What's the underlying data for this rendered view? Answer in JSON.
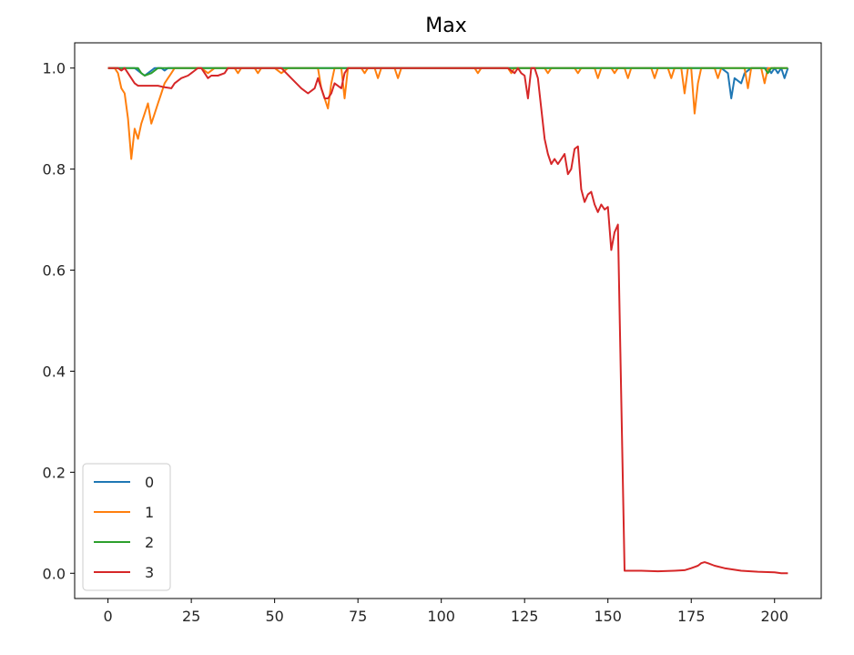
{
  "chart_data": {
    "type": "line",
    "title": "Max",
    "xlabel": "",
    "ylabel": "",
    "xlim": [
      -10,
      214
    ],
    "ylim": [
      -0.05,
      1.05
    ],
    "xticks": [
      0,
      25,
      50,
      75,
      100,
      125,
      150,
      175,
      200
    ],
    "yticks": [
      0.0,
      0.2,
      0.4,
      0.6,
      0.8,
      1.0
    ],
    "ytick_labels": [
      "0.0",
      "0.2",
      "0.4",
      "0.6",
      "0.8",
      "1.0"
    ],
    "grid": false,
    "legend": "lower-left",
    "series": [
      {
        "name": "0",
        "color": "#1f77b4",
        "points": [
          [
            0,
            1.0
          ],
          [
            8,
            1.0
          ],
          [
            10,
            0.99
          ],
          [
            11,
            0.985
          ],
          [
            12,
            0.99
          ],
          [
            14,
            1.0
          ],
          [
            16,
            1.0
          ],
          [
            17,
            0.995
          ],
          [
            18,
            1.0
          ],
          [
            30,
            1.0
          ],
          [
            60,
            1.0
          ],
          [
            100,
            1.0
          ],
          [
            150,
            1.0
          ],
          [
            180,
            1.0
          ],
          [
            184,
            1.0
          ],
          [
            186,
            0.99
          ],
          [
            187,
            0.94
          ],
          [
            188,
            0.98
          ],
          [
            190,
            0.97
          ],
          [
            191,
            0.99
          ],
          [
            193,
            1.0
          ],
          [
            198,
            1.0
          ],
          [
            199,
            0.99
          ],
          [
            200,
            1.0
          ],
          [
            201,
            0.99
          ],
          [
            202,
            1.0
          ],
          [
            203,
            0.98
          ],
          [
            204,
            1.0
          ]
        ]
      },
      {
        "name": "1",
        "color": "#ff7f0e",
        "points": [
          [
            0,
            1.0
          ],
          [
            2,
            1.0
          ],
          [
            3,
            0.99
          ],
          [
            4,
            0.96
          ],
          [
            5,
            0.95
          ],
          [
            6,
            0.9
          ],
          [
            7,
            0.82
          ],
          [
            8,
            0.88
          ],
          [
            9,
            0.86
          ],
          [
            10,
            0.89
          ],
          [
            11,
            0.91
          ],
          [
            12,
            0.93
          ],
          [
            13,
            0.89
          ],
          [
            14,
            0.91
          ],
          [
            15,
            0.93
          ],
          [
            16,
            0.95
          ],
          [
            17,
            0.97
          ],
          [
            18,
            0.98
          ],
          [
            19,
            0.99
          ],
          [
            20,
            1.0
          ],
          [
            28,
            1.0
          ],
          [
            30,
            0.99
          ],
          [
            32,
            1.0
          ],
          [
            38,
            1.0
          ],
          [
            39,
            0.99
          ],
          [
            40,
            1.0
          ],
          [
            44,
            1.0
          ],
          [
            45,
            0.99
          ],
          [
            46,
            1.0
          ],
          [
            50,
            1.0
          ],
          [
            52,
            0.99
          ],
          [
            54,
            1.0
          ],
          [
            63,
            1.0
          ],
          [
            64,
            0.96
          ],
          [
            65,
            0.94
          ],
          [
            66,
            0.92
          ],
          [
            67,
            0.97
          ],
          [
            68,
            1.0
          ],
          [
            70,
            1.0
          ],
          [
            71,
            0.94
          ],
          [
            72,
            1.0
          ],
          [
            76,
            1.0
          ],
          [
            77,
            0.99
          ],
          [
            78,
            1.0
          ],
          [
            80,
            1.0
          ],
          [
            81,
            0.98
          ],
          [
            82,
            1.0
          ],
          [
            86,
            1.0
          ],
          [
            87,
            0.98
          ],
          [
            88,
            1.0
          ],
          [
            110,
            1.0
          ],
          [
            111,
            0.99
          ],
          [
            112,
            1.0
          ],
          [
            120,
            1.0
          ],
          [
            121,
            0.99
          ],
          [
            122,
            1.0
          ],
          [
            131,
            1.0
          ],
          [
            132,
            0.99
          ],
          [
            133,
            1.0
          ],
          [
            140,
            1.0
          ],
          [
            141,
            0.99
          ],
          [
            142,
            1.0
          ],
          [
            146,
            1.0
          ],
          [
            147,
            0.98
          ],
          [
            148,
            1.0
          ],
          [
            151,
            1.0
          ],
          [
            152,
            0.99
          ],
          [
            153,
            1.0
          ],
          [
            155,
            1.0
          ],
          [
            156,
            0.98
          ],
          [
            157,
            1.0
          ],
          [
            163,
            1.0
          ],
          [
            164,
            0.98
          ],
          [
            165,
            1.0
          ],
          [
            168,
            1.0
          ],
          [
            169,
            0.98
          ],
          [
            170,
            1.0
          ],
          [
            172,
            1.0
          ],
          [
            173,
            0.95
          ],
          [
            174,
            1.0
          ],
          [
            175,
            1.0
          ],
          [
            176,
            0.91
          ],
          [
            177,
            0.97
          ],
          [
            178,
            1.0
          ],
          [
            182,
            1.0
          ],
          [
            183,
            0.98
          ],
          [
            184,
            1.0
          ],
          [
            191,
            1.0
          ],
          [
            192,
            0.96
          ],
          [
            193,
            1.0
          ],
          [
            196,
            1.0
          ],
          [
            197,
            0.97
          ],
          [
            198,
            1.0
          ],
          [
            204,
            1.0
          ]
        ]
      },
      {
        "name": "2",
        "color": "#2ca02c",
        "points": [
          [
            0,
            1.0
          ],
          [
            9,
            1.0
          ],
          [
            10,
            0.99
          ],
          [
            11,
            0.985
          ],
          [
            13,
            0.99
          ],
          [
            15,
            1.0
          ],
          [
            50,
            1.0
          ],
          [
            100,
            1.0
          ],
          [
            150,
            1.0
          ],
          [
            197,
            1.0
          ],
          [
            198,
            0.99
          ],
          [
            199,
            1.0
          ],
          [
            204,
            1.0
          ]
        ]
      },
      {
        "name": "3",
        "color": "#d62728",
        "points": [
          [
            0,
            1.0
          ],
          [
            3,
            1.0
          ],
          [
            4,
            0.995
          ],
          [
            5,
            1.0
          ],
          [
            6,
            0.99
          ],
          [
            7,
            0.98
          ],
          [
            8,
            0.97
          ],
          [
            9,
            0.965
          ],
          [
            12,
            0.965
          ],
          [
            15,
            0.965
          ],
          [
            17,
            0.962
          ],
          [
            19,
            0.96
          ],
          [
            20,
            0.97
          ],
          [
            22,
            0.98
          ],
          [
            24,
            0.985
          ],
          [
            25,
            0.99
          ],
          [
            26,
            0.995
          ],
          [
            27,
            1.0
          ],
          [
            28,
            1.0
          ],
          [
            29,
            0.99
          ],
          [
            30,
            0.98
          ],
          [
            31,
            0.985
          ],
          [
            33,
            0.985
          ],
          [
            35,
            0.99
          ],
          [
            36,
            1.0
          ],
          [
            52,
            1.0
          ],
          [
            55,
            0.98
          ],
          [
            58,
            0.96
          ],
          [
            60,
            0.95
          ],
          [
            62,
            0.96
          ],
          [
            63,
            0.98
          ],
          [
            64,
            0.96
          ],
          [
            65,
            0.94
          ],
          [
            66,
            0.94
          ],
          [
            67,
            0.95
          ],
          [
            68,
            0.97
          ],
          [
            70,
            0.96
          ],
          [
            71,
            0.99
          ],
          [
            72,
            1.0
          ],
          [
            120,
            1.0
          ],
          [
            122,
            0.99
          ],
          [
            123,
            1.0
          ],
          [
            124,
            0.99
          ],
          [
            125,
            0.985
          ],
          [
            126,
            0.94
          ],
          [
            127,
            1.0
          ],
          [
            128,
            1.0
          ],
          [
            129,
            0.98
          ],
          [
            130,
            0.92
          ],
          [
            131,
            0.86
          ],
          [
            132,
            0.83
          ],
          [
            133,
            0.81
          ],
          [
            134,
            0.82
          ],
          [
            135,
            0.81
          ],
          [
            136,
            0.82
          ],
          [
            137,
            0.83
          ],
          [
            138,
            0.79
          ],
          [
            139,
            0.8
          ],
          [
            140,
            0.84
          ],
          [
            141,
            0.845
          ],
          [
            142,
            0.76
          ],
          [
            143,
            0.735
          ],
          [
            144,
            0.75
          ],
          [
            145,
            0.755
          ],
          [
            146,
            0.73
          ],
          [
            147,
            0.715
          ],
          [
            148,
            0.73
          ],
          [
            149,
            0.72
          ],
          [
            150,
            0.725
          ],
          [
            151,
            0.64
          ],
          [
            152,
            0.675
          ],
          [
            153,
            0.69
          ],
          [
            155,
            0.005
          ],
          [
            160,
            0.005
          ],
          [
            165,
            0.004
          ],
          [
            170,
            0.005
          ],
          [
            173,
            0.006
          ],
          [
            175,
            0.01
          ],
          [
            177,
            0.015
          ],
          [
            178,
            0.02
          ],
          [
            179,
            0.022
          ],
          [
            180,
            0.02
          ],
          [
            182,
            0.015
          ],
          [
            185,
            0.01
          ],
          [
            190,
            0.005
          ],
          [
            195,
            0.003
          ],
          [
            200,
            0.002
          ],
          [
            202,
            0.0
          ],
          [
            204,
            0.0
          ]
        ]
      }
    ]
  }
}
